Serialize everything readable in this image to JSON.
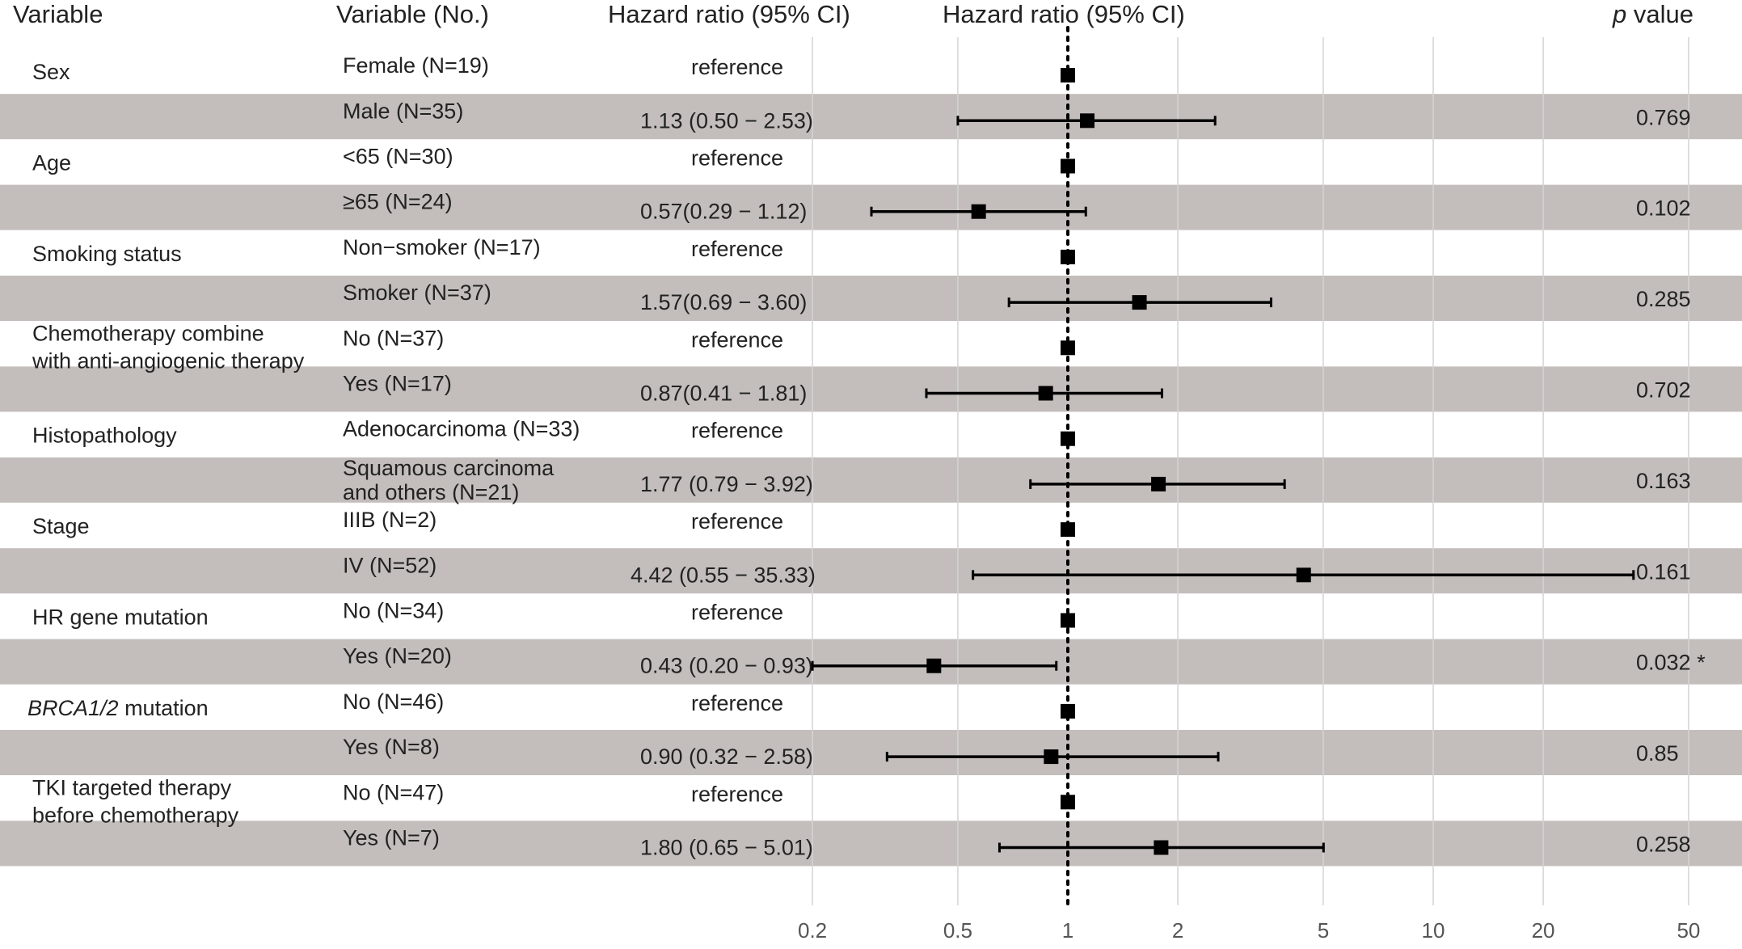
{
  "chart_data": {
    "type": "forest",
    "headers": {
      "variable": "Variable",
      "variable_no": "Variable (No.)",
      "hr_text": "Hazard ratio (95% CI)",
      "hr_plot": "Hazard ratio (95% CI)",
      "p_prefix": "p",
      "p_suffix": " value"
    },
    "x_axis": {
      "scale": "log",
      "range": [
        0.15,
        60
      ],
      "ticks": [
        0.2,
        0.5,
        1,
        2,
        5,
        10,
        20,
        50
      ],
      "tick_labels": [
        "0.2",
        "0.5",
        "1",
        "2",
        "5",
        "10",
        "20",
        "50"
      ],
      "reference_line": 1,
      "grid": true
    },
    "groups": [
      {
        "variable": [
          "Sex"
        ],
        "italic_part": "",
        "rows": [
          {
            "level": [
              "Female (N=19)"
            ],
            "reference": true,
            "hr_text": "reference",
            "p_value": "",
            "hr": 1
          },
          {
            "level": [
              "Male (N=35)"
            ],
            "reference": false,
            "hr_text": "1.13 (0.50 − 2.53)",
            "p_value": "0.769",
            "hr": 1.13,
            "lower": 0.5,
            "upper": 2.53
          }
        ]
      },
      {
        "variable": [
          "Age"
        ],
        "italic_part": "",
        "rows": [
          {
            "level": [
              "<65  (N=30)"
            ],
            "reference": true,
            "hr_text": "reference",
            "p_value": "",
            "hr": 1
          },
          {
            "level": [
              "≥65 (N=24)"
            ],
            "reference": false,
            "hr_text": "0.57(0.29 − 1.12)",
            "p_value": "0.102",
            "hr": 0.57,
            "lower": 0.29,
            "upper": 1.12
          }
        ]
      },
      {
        "variable": [
          "Smoking status"
        ],
        "italic_part": "",
        "rows": [
          {
            "level": [
              "Non−smoker (N=17)"
            ],
            "reference": true,
            "hr_text": "reference",
            "p_value": "",
            "hr": 1
          },
          {
            "level": [
              "Smoker (N=37)"
            ],
            "reference": false,
            "hr_text": "1.57(0.69 − 3.60)",
            "p_value": "0.285",
            "hr": 1.57,
            "lower": 0.69,
            "upper": 3.6
          }
        ]
      },
      {
        "variable": [
          "Chemotherapy combine",
          "with anti-angiogenic therapy"
        ],
        "italic_part": "",
        "rows": [
          {
            "level": [
              "No (N=37)"
            ],
            "reference": true,
            "hr_text": "reference",
            "p_value": "",
            "hr": 1
          },
          {
            "level": [
              "Yes (N=17)"
            ],
            "reference": false,
            "hr_text": "0.87(0.41 − 1.81)",
            "p_value": "0.702",
            "hr": 0.87,
            "lower": 0.41,
            "upper": 1.81
          }
        ]
      },
      {
        "variable": [
          "Histopathology"
        ],
        "italic_part": "",
        "rows": [
          {
            "level": [
              "Adenocarcinoma (N=33)"
            ],
            "reference": true,
            "hr_text": "reference",
            "p_value": "",
            "hr": 1
          },
          {
            "level": [
              "Squamous carcinoma",
              "and others  (N=21)"
            ],
            "reference": false,
            "hr_text": "1.77 (0.79 − 3.92)",
            "p_value": "0.163",
            "hr": 1.77,
            "lower": 0.79,
            "upper": 3.92
          }
        ]
      },
      {
        "variable": [
          "Stage"
        ],
        "italic_part": "",
        "rows": [
          {
            "level": [
              "IIIB (N=2)"
            ],
            "reference": true,
            "hr_text": "reference",
            "p_value": "",
            "hr": 1
          },
          {
            "level": [
              "IV  (N=52)"
            ],
            "reference": false,
            "hr_text": "4.42 (0.55 − 35.33)",
            "p_value": "0.161",
            "hr": 4.42,
            "lower": 0.55,
            "upper": 35.33
          }
        ]
      },
      {
        "variable": [
          "HR gene mutation"
        ],
        "italic_part": "",
        "rows": [
          {
            "level": [
              "No  (N=34)"
            ],
            "reference": true,
            "hr_text": "reference",
            "p_value": "",
            "hr": 1
          },
          {
            "level": [
              "Yes (N=20)"
            ],
            "reference": false,
            "hr_text": "0.43 (0.20 − 0.93)",
            "p_value": "0.032 *",
            "hr": 0.43,
            "lower": 0.2,
            "upper": 0.93
          }
        ]
      },
      {
        "variable": [
          "BRCA1/2 mutation"
        ],
        "italic_part": "BRCA1/2",
        "rows": [
          {
            "level": [
              "No  (N=46)"
            ],
            "reference": true,
            "hr_text": "reference",
            "p_value": "",
            "hr": 1
          },
          {
            "level": [
              "Yes (N=8)"
            ],
            "reference": false,
            "hr_text": "0.90 (0.32 − 2.58)",
            "p_value": "0.85",
            "hr": 0.9,
            "lower": 0.32,
            "upper": 2.58
          }
        ]
      },
      {
        "variable": [
          "TKI targeted therapy",
          "before chemotherapy"
        ],
        "italic_part": "",
        "rows": [
          {
            "level": [
              "No (N=47)"
            ],
            "reference": true,
            "hr_text": "reference",
            "p_value": "",
            "hr": 1
          },
          {
            "level": [
              "Yes (N=7)"
            ],
            "reference": false,
            "hr_text": "1.80 (0.65 − 5.01)",
            "p_value": "0.258",
            "hr": 1.8,
            "lower": 0.65,
            "upper": 5.01
          }
        ]
      }
    ],
    "colors": {
      "shade": "#c3bebb",
      "marker": "#000000",
      "grid": "#d4d4d4",
      "text": "#222222"
    }
  }
}
